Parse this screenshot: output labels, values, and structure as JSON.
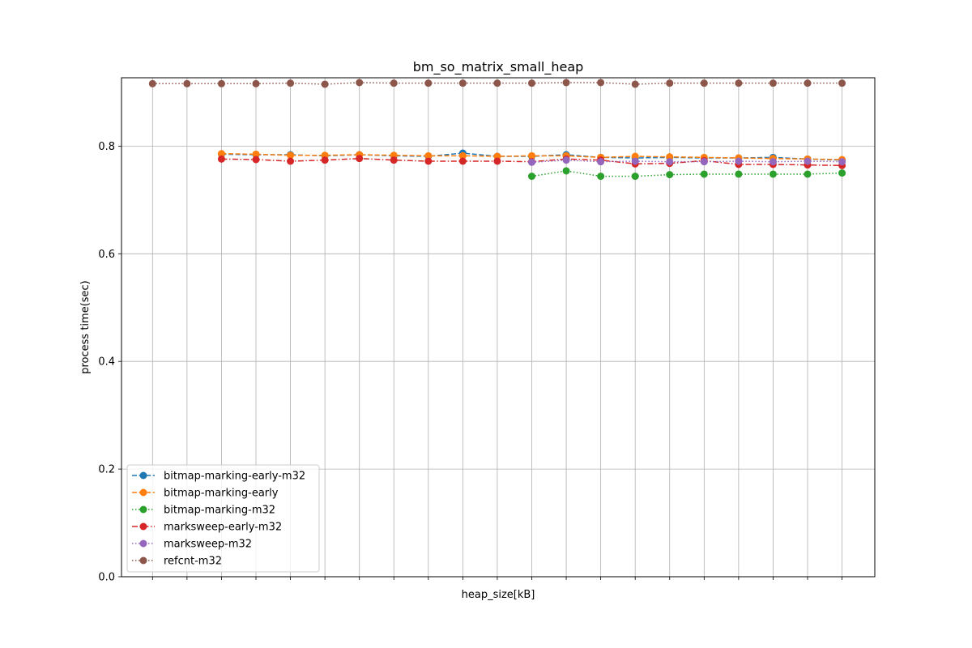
{
  "chart_data": {
    "type": "line",
    "title": "bm_so_matrix_small_heap",
    "xlabel": "heap_size[kB]",
    "ylabel": "process time(sec)",
    "ylim": [
      0.0,
      0.927
    ],
    "yticks": [
      "0.0",
      "0.2",
      "0.4",
      "0.6",
      "0.8"
    ],
    "x": [
      1,
      2,
      3,
      4,
      5,
      6,
      7,
      8,
      9,
      10,
      11,
      12,
      13,
      14,
      15,
      16,
      17,
      18,
      19,
      20,
      21
    ],
    "xlim": [
      0.1,
      21.95
    ],
    "grid": true,
    "legend_position": "lower-left",
    "series": [
      {
        "name": "bitmap-marking-early-m32",
        "color": "#1f77b4",
        "linestyle": "dashed",
        "values": [
          null,
          null,
          0.785,
          0.784,
          0.784,
          0.782,
          0.784,
          0.782,
          0.781,
          0.787,
          0.781,
          0.781,
          0.784,
          0.779,
          0.778,
          0.779,
          0.778,
          0.778,
          0.779,
          0.776,
          0.774
        ]
      },
      {
        "name": "bitmap-marking-early",
        "color": "#ff7f0e",
        "linestyle": "dashed",
        "values": [
          null,
          null,
          0.786,
          0.785,
          0.783,
          0.783,
          0.784,
          0.783,
          0.782,
          0.782,
          0.781,
          0.782,
          0.782,
          0.779,
          0.781,
          0.78,
          0.779,
          0.778,
          0.777,
          0.776,
          0.775
        ]
      },
      {
        "name": "bitmap-marking-m32",
        "color": "#2ca02c",
        "linestyle": "dotted",
        "values": [
          null,
          null,
          null,
          null,
          null,
          null,
          null,
          null,
          null,
          null,
          null,
          0.744,
          0.754,
          0.744,
          0.744,
          0.747,
          0.748,
          0.748,
          0.748,
          0.748,
          0.75
        ]
      },
      {
        "name": "marksweep-early-m32",
        "color": "#d62728",
        "linestyle": "dashdot",
        "values": [
          null,
          null,
          0.776,
          0.775,
          0.772,
          0.774,
          0.777,
          0.774,
          0.772,
          0.772,
          0.772,
          0.771,
          0.776,
          0.774,
          0.767,
          0.768,
          0.773,
          0.766,
          0.766,
          0.765,
          0.764
        ]
      },
      {
        "name": "marksweep-m32",
        "color": "#9467bd",
        "linestyle": "dotted",
        "values": [
          null,
          null,
          null,
          null,
          null,
          null,
          null,
          null,
          null,
          null,
          null,
          0.77,
          0.774,
          0.771,
          0.772,
          0.771,
          0.771,
          0.772,
          0.771,
          0.772,
          0.771
        ]
      },
      {
        "name": "refcnt-m32",
        "color": "#8c564b",
        "linestyle": "dotted",
        "values": [
          0.916,
          0.916,
          0.916,
          0.916,
          0.917,
          0.915,
          0.918,
          0.917,
          0.917,
          0.917,
          0.917,
          0.917,
          0.918,
          0.918,
          0.915,
          0.917,
          0.917,
          0.917,
          0.917,
          0.917,
          0.917
        ]
      }
    ]
  }
}
